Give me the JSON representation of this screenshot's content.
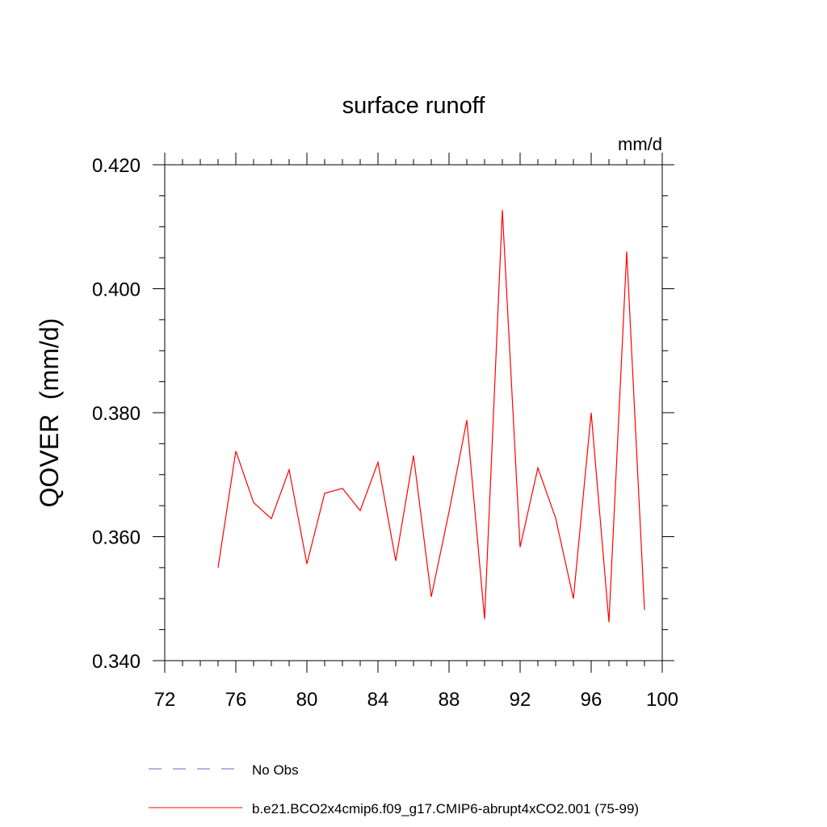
{
  "chart_data": {
    "type": "line",
    "title": "surface runoff",
    "units": "mm/d",
    "ylabel": "QOVER  (mm/d)",
    "xlabel": "",
    "xlim": [
      72,
      100
    ],
    "ylim": [
      0.34,
      0.42
    ],
    "x_major_ticks": [
      72,
      76,
      80,
      84,
      88,
      92,
      96,
      100
    ],
    "x_tick_labels": [
      "72",
      "76",
      "80",
      "84",
      "88",
      "92",
      "96",
      "100"
    ],
    "y_major_ticks": [
      0.34,
      0.36,
      0.38,
      0.4,
      0.42
    ],
    "y_tick_labels": [
      "0.340",
      "0.360",
      "0.380",
      "0.400",
      "0.420"
    ],
    "grid": false,
    "legend_placement": "bottom",
    "series": [
      {
        "name": "No Obs",
        "color": "#6666cc",
        "style": "dashed",
        "x": [],
        "values": []
      },
      {
        "name": "b.e21.BCO2x4cmip6.f09_g17.CMIP6-abrupt4xCO2.001 (75-99)",
        "color": "#ff0000",
        "style": "solid",
        "x": [
          75,
          76,
          77,
          78,
          79,
          80,
          81,
          82,
          83,
          84,
          85,
          86,
          87,
          88,
          89,
          90,
          91,
          92,
          93,
          94,
          95,
          96,
          97,
          98,
          99
        ],
        "values": [
          0.355,
          0.3738,
          0.3655,
          0.3629,
          0.3708,
          0.3556,
          0.367,
          0.3678,
          0.3642,
          0.372,
          0.3561,
          0.3731,
          0.3503,
          0.364,
          0.3788,
          0.3467,
          0.4127,
          0.3583,
          0.3711,
          0.363,
          0.35,
          0.38,
          0.3462,
          0.406,
          0.3482
        ]
      }
    ]
  }
}
